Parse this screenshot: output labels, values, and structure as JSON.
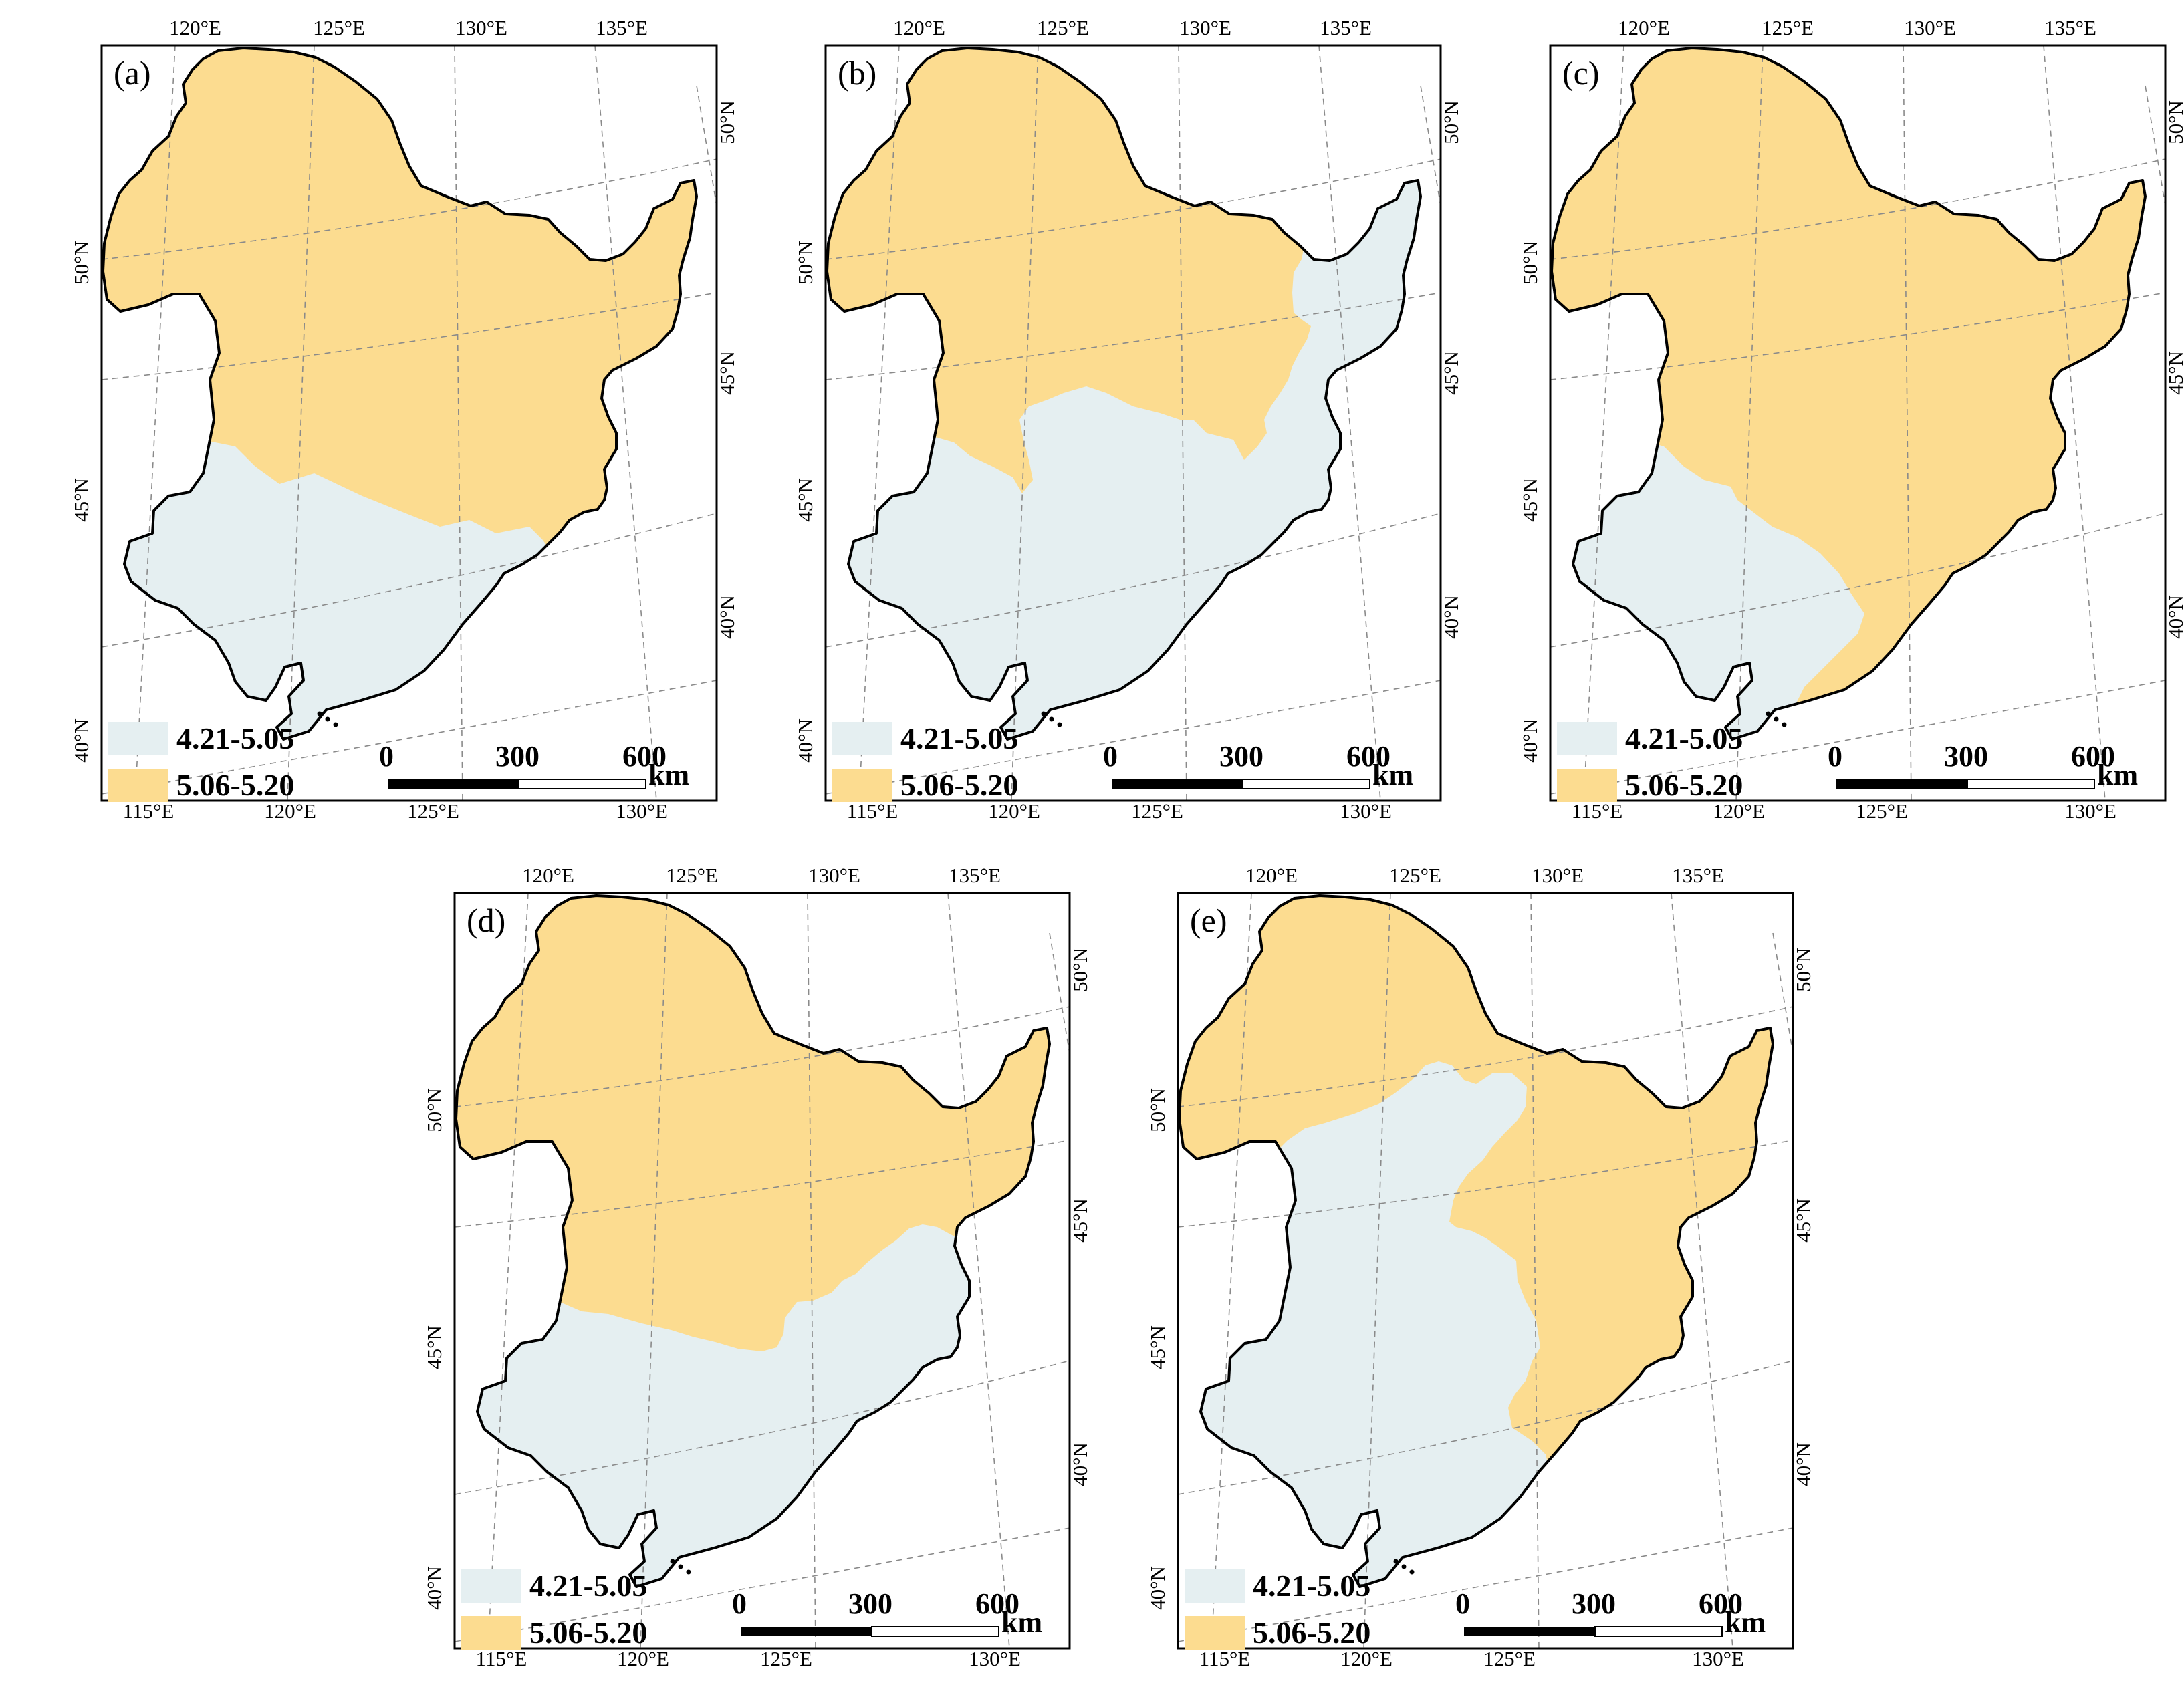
{
  "colors": {
    "early": "#e5eff1",
    "late": "#fcdc90",
    "outline": "#000000",
    "graticule": "#8a8a8a"
  },
  "legend": {
    "early_label": "4.21-5.05",
    "late_label": "5.06-5.20"
  },
  "axes": {
    "top_ticks": [
      "120°E",
      "125°E",
      "130°E",
      "135°E"
    ],
    "bottom_ticks": [
      "115°E",
      "120°E",
      "125°E",
      "130°E"
    ],
    "left_ticks": [
      "50°N",
      "45°N",
      "40°N"
    ],
    "right_ticks": [
      "50°N",
      "45°N",
      "40°N"
    ]
  },
  "scale_bar": {
    "labels": [
      "0",
      "300",
      "600"
    ],
    "unit": "km"
  },
  "panels": [
    {
      "id": "a",
      "label": "(a)",
      "dominant_class": "5.06-5.20"
    },
    {
      "id": "b",
      "label": "(b)",
      "dominant_class": "4.21-5.05"
    },
    {
      "id": "c",
      "label": "(c)",
      "dominant_class": "5.06-5.20"
    },
    {
      "id": "d",
      "label": "(d)",
      "dominant_class": "5.06-5.20"
    },
    {
      "id": "e",
      "label": "(e)",
      "dominant_class": "5.06-5.20"
    }
  ]
}
